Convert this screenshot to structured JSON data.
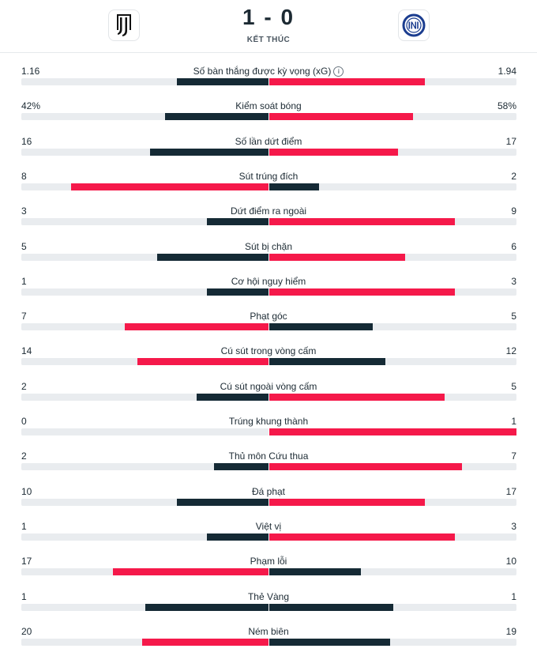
{
  "match": {
    "score": "1 - 0",
    "status": "KẾT THÚC",
    "home_logo_icon": "juventus-logo-icon",
    "away_logo_icon": "inter-logo-icon"
  },
  "colors": {
    "winner": "#f5194a",
    "loser": "#152a35",
    "track": "#e9ecef"
  },
  "stats": [
    {
      "label": "Số bàn thắng được kỳ vọng (xG)",
      "home": "1.16",
      "away": "1.94",
      "home_share": 0.37,
      "away_share": 0.63,
      "info": true
    },
    {
      "label": "Kiểm soát bóng",
      "home": "42%",
      "away": "58%",
      "home_share": 0.42,
      "away_share": 0.58
    },
    {
      "label": "Số lần dứt điểm",
      "home": "16",
      "away": "17",
      "home_share": 0.48,
      "away_share": 0.52
    },
    {
      "label": "Sút trúng đích",
      "home": "8",
      "away": "2",
      "home_share": 0.8,
      "away_share": 0.2
    },
    {
      "label": "Dứt điểm ra ngoài",
      "home": "3",
      "away": "9",
      "home_share": 0.25,
      "away_share": 0.75
    },
    {
      "label": "Sút bị chặn",
      "home": "5",
      "away": "6",
      "home_share": 0.45,
      "away_share": 0.55
    },
    {
      "label": "Cơ hội nguy hiểm",
      "home": "1",
      "away": "3",
      "home_share": 0.25,
      "away_share": 0.75
    },
    {
      "label": "Phạt góc",
      "home": "7",
      "away": "5",
      "home_share": 0.58,
      "away_share": 0.42
    },
    {
      "label": "Cú sút trong vòng cấm",
      "home": "14",
      "away": "12",
      "home_share": 0.53,
      "away_share": 0.47
    },
    {
      "label": "Cú sút ngoài vòng cấm",
      "home": "2",
      "away": "5",
      "home_share": 0.29,
      "away_share": 0.71
    },
    {
      "label": "Trúng khung thành",
      "home": "0",
      "away": "1",
      "home_share": 0,
      "away_share": 1
    },
    {
      "label": "Thủ môn Cứu thua",
      "home": "2",
      "away": "7",
      "home_share": 0.22,
      "away_share": 0.78
    },
    {
      "label": "Đá phạt",
      "home": "10",
      "away": "17",
      "home_share": 0.37,
      "away_share": 0.63
    },
    {
      "label": "Việt vị",
      "home": "1",
      "away": "3",
      "home_share": 0.25,
      "away_share": 0.75
    },
    {
      "label": "Phạm lỗi",
      "home": "17",
      "away": "10",
      "home_share": 0.63,
      "away_share": 0.37
    },
    {
      "label": "Thẻ Vàng",
      "home": "1",
      "away": "1",
      "home_share": 0.5,
      "away_share": 0.5
    },
    {
      "label": "Ném biên",
      "home": "20",
      "away": "19",
      "home_share": 0.51,
      "away_share": 0.49
    }
  ]
}
